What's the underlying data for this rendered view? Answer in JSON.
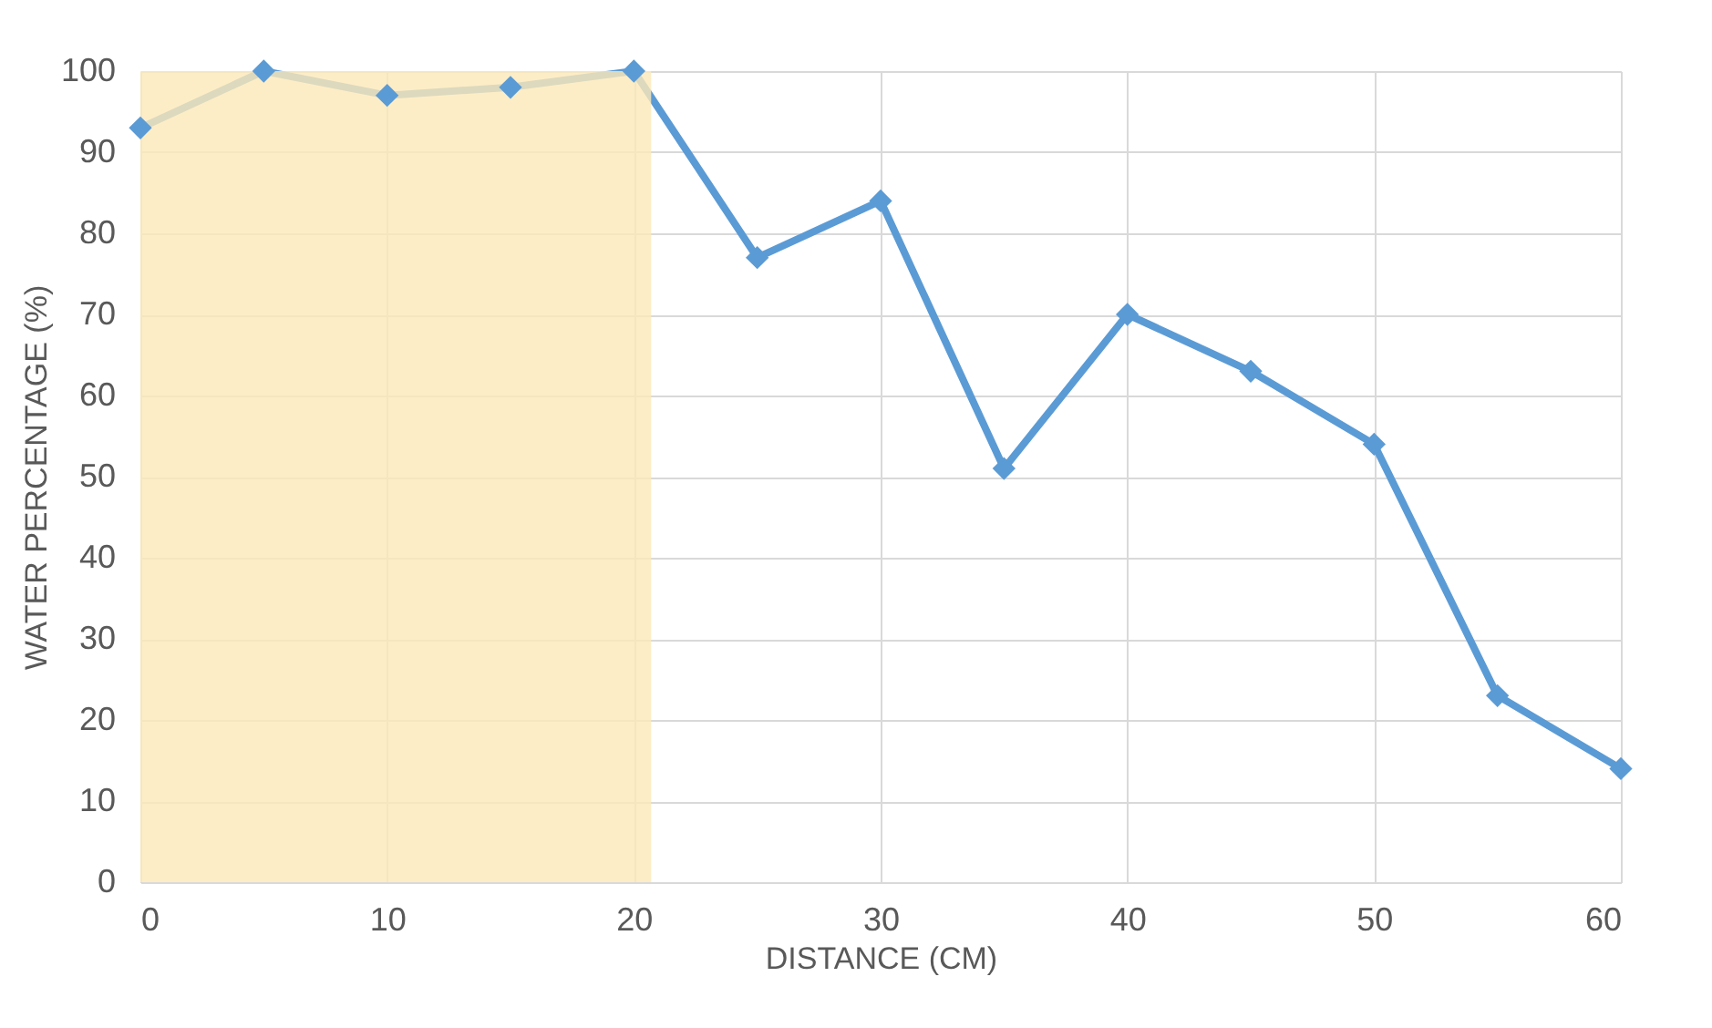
{
  "chart_data": {
    "type": "line",
    "xlabel": "DISTANCE (CM)",
    "ylabel": "WATER PERCENTAGE (%)",
    "x": [
      0,
      5,
      10,
      15,
      20,
      25,
      30,
      35,
      40,
      45,
      50,
      55,
      60
    ],
    "series": [
      {
        "color": "#5b9bd5",
        "values": [
          93,
          100,
          97,
          98,
          100,
          77,
          84,
          51,
          70,
          63,
          54,
          23,
          14
        ]
      }
    ],
    "xlim": [
      0,
      60
    ],
    "xticks": [
      0,
      10,
      20,
      30,
      40,
      50,
      60
    ],
    "ylim": [
      0,
      100
    ],
    "yticks": [
      0,
      10,
      20,
      30,
      40,
      50,
      60,
      70,
      80,
      90,
      100
    ],
    "bands": [
      {
        "axis": "x",
        "from": 0,
        "to": 20.7,
        "color": "#fde9b8"
      }
    ],
    "grid": true,
    "marker": "diamond",
    "line_style": "solid"
  }
}
